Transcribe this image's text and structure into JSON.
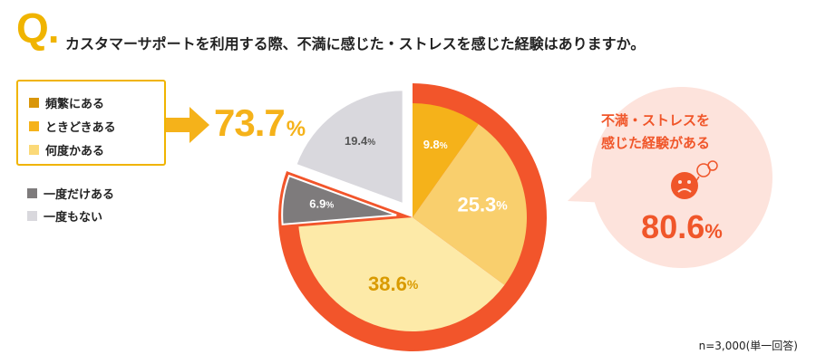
{
  "question": {
    "mark": "Q.",
    "text": "カスタマーサポートを利用する際、不満に感じた・ストレスを感じた経験はありますか。"
  },
  "colors": {
    "accent": "#f0b400",
    "outer_ring": "#f2552b",
    "callout_bg": "#fde3dc",
    "callout_text": "#f0562a",
    "frequent": "#f5b21a",
    "sometimes": "#f9cf6d",
    "occasionally": "#fdeaa8",
    "only_once": "#7e7b7c",
    "never": "#d9d8dd"
  },
  "legend": {
    "boxed": [
      {
        "label": "頻繁にある",
        "color": "#d9960a"
      },
      {
        "label": "ときどきある",
        "color": "#f5b21a"
      },
      {
        "label": "何度かある",
        "color": "#fbd978"
      }
    ],
    "plain": [
      {
        "label": "一度だけある",
        "color": "#7e7b7c"
      },
      {
        "label": "一度もない",
        "color": "#d9d8dd"
      }
    ]
  },
  "summary": {
    "value": "73.7",
    "unit": "%"
  },
  "callout": {
    "title": "不満・ストレスを 感じた経験がある",
    "value": "80.6",
    "unit": "%",
    "icon": "sad-face-icon"
  },
  "note": "n=3,000(単一回答)",
  "chart_data": {
    "type": "pie",
    "title": "",
    "unit": "%",
    "slices": [
      {
        "label": "頻繁にある",
        "value": 9.8,
        "display": "9.8",
        "color": "#f5b21a",
        "text_color": "#ffffff",
        "exploded": false
      },
      {
        "label": "ときどきある",
        "value": 25.3,
        "display": "25.3",
        "color": "#f9cf6d",
        "text_color": "#ffffff",
        "exploded": false
      },
      {
        "label": "何度かある",
        "value": 38.6,
        "display": "38.6",
        "color": "#fdeaa8",
        "text_color": "#d99a00",
        "exploded": false
      },
      {
        "label": "一度だけある",
        "value": 6.9,
        "display": "6.9",
        "color": "#7e7b7c",
        "text_color": "#ffffff",
        "exploded": true
      },
      {
        "label": "一度もない",
        "value": 19.4,
        "display": "19.4",
        "color": "#d9d8dd",
        "text_color": "#555555",
        "exploded": true
      }
    ],
    "highlight_ring": {
      "covers": [
        "頻繁にある",
        "ときどきある",
        "何度かある",
        "一度だけある"
      ],
      "value": 80.6
    }
  }
}
